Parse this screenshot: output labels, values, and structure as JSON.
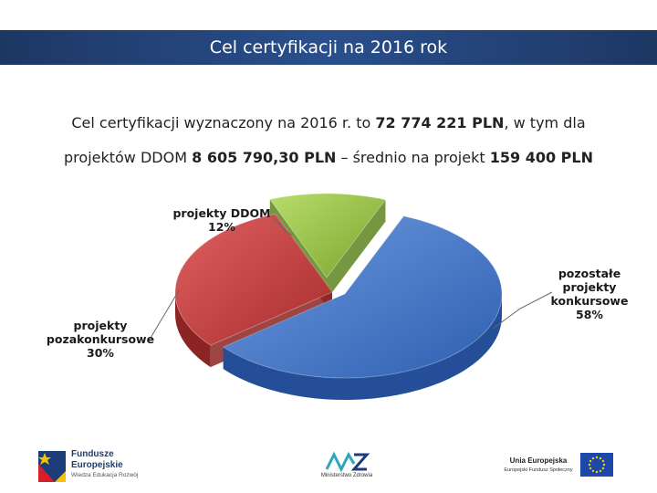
{
  "header": {
    "title": "Cel certyfikacji na 2016 rok"
  },
  "intro": {
    "line1_prefix": "Cel certyfikacji wyznaczony na 2016 r. to ",
    "line1_amount": "72 774 221 PLN",
    "line1_suffix": ", w tym dla",
    "line2_prefix": "projektów DDOM ",
    "line2_amount": "8 605 790,30 PLN",
    "line2_middle": " – średnio na projekt ",
    "line2_avg": "159 400 PLN"
  },
  "chart_data": {
    "type": "pie",
    "slices": [
      {
        "label": "pozostałe projekty konkursowe",
        "value": 58,
        "color": "#3a6fc4"
      },
      {
        "label": "projekty pozakonkursowe",
        "value": 30,
        "color": "#c33d3d"
      },
      {
        "label": "projekty DDOM",
        "value": 12,
        "color": "#8dbb3a"
      }
    ],
    "unit": "%"
  },
  "labels": {
    "ddom_name": "projekty DDOM",
    "ddom_pct": "12%",
    "konk_line1": "pozostałe",
    "konk_line2": "projekty",
    "konk_line3": "konkursowe",
    "konk_pct": "58%",
    "pozak_line1": "projekty",
    "pozak_line2": "pozakonkursowe",
    "pozak_pct": "30%"
  },
  "footer": {
    "fe_line1": "Fundusze",
    "fe_line2": "Europejskie",
    "fe_line3": "Wiedza Edukacja Rozwój",
    "mz_caption": "Ministerstwo Zdrowia",
    "ue_line1": "Unia Europejska",
    "ue_line2": "Europejski Fundusz Społeczny"
  }
}
